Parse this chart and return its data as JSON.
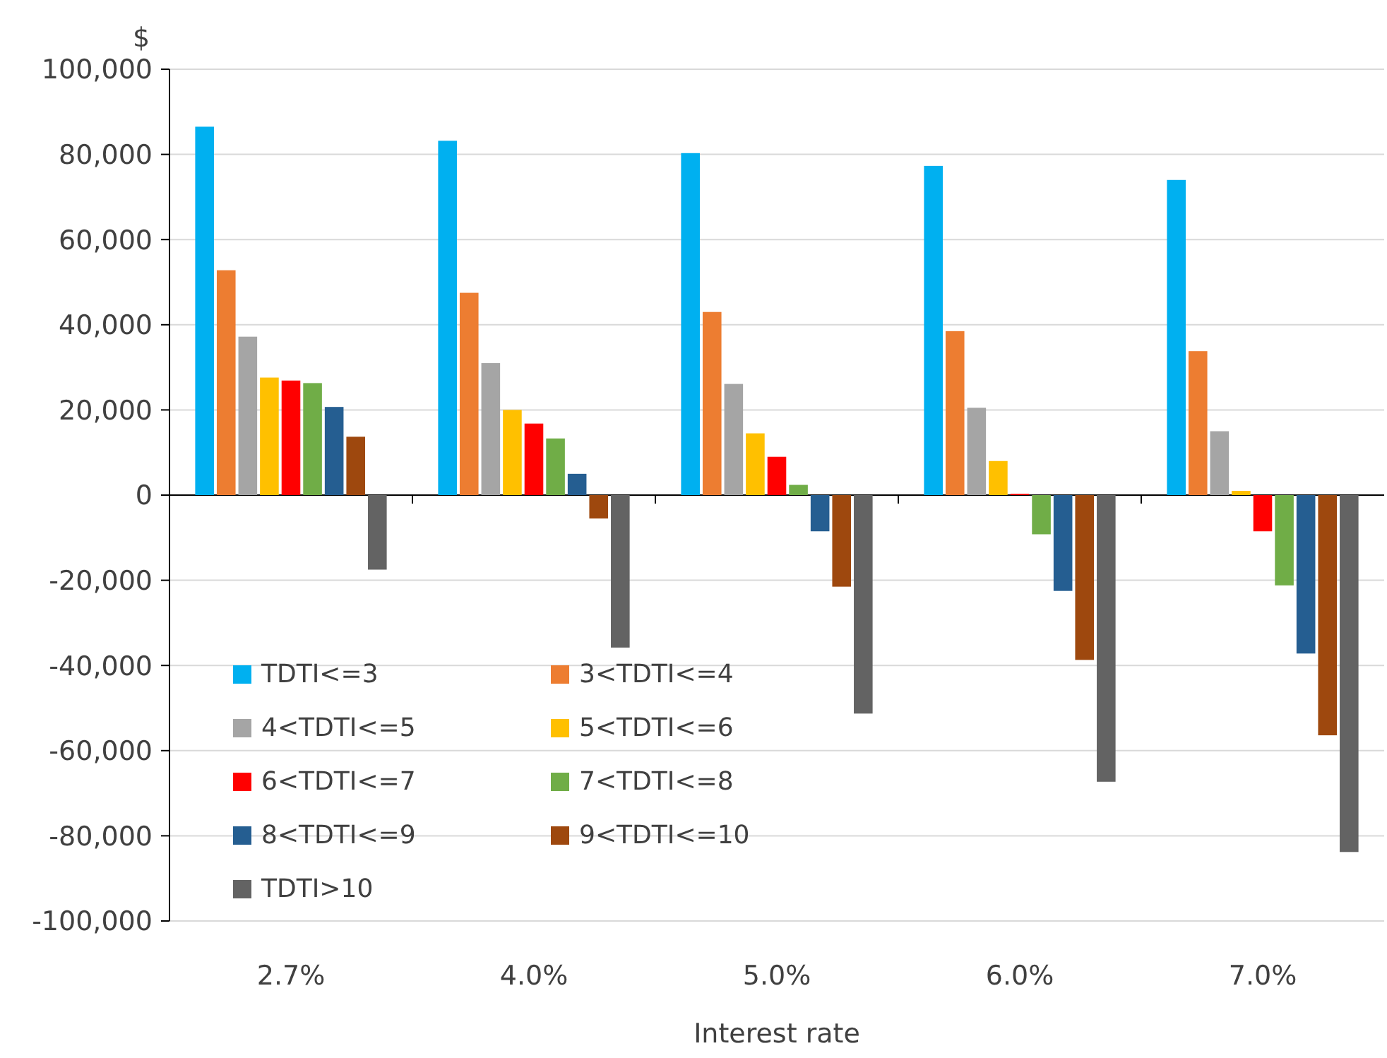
{
  "chart_data": {
    "type": "bar",
    "ylabel": "$",
    "xlabel": "Interest rate",
    "categories": [
      "2.7%",
      "4.0%",
      "5.0%",
      "6.0%",
      "7.0%"
    ],
    "series": [
      {
        "name": "TDTI<=3",
        "color": "#00b0f0",
        "values": [
          86500,
          83200,
          80300,
          77300,
          74000
        ]
      },
      {
        "name": "3<TDTI<=4",
        "color": "#ed7d31",
        "values": [
          52800,
          47500,
          43000,
          38500,
          33800
        ]
      },
      {
        "name": "4<TDTI<=5",
        "color": "#a5a5a5",
        "values": [
          37200,
          31000,
          26100,
          20500,
          15000
        ]
      },
      {
        "name": "5<TDTI<=6",
        "color": "#ffc000",
        "values": [
          27600,
          20000,
          14500,
          8000,
          1000
        ]
      },
      {
        "name": "6<TDTI<=7",
        "color": "#ff0000",
        "values": [
          26900,
          16800,
          9000,
          300,
          -8500
        ]
      },
      {
        "name": "7<TDTI<=8",
        "color": "#70ad47",
        "values": [
          26300,
          13300,
          2400,
          -9200,
          -21200
        ]
      },
      {
        "name": "8<TDTI<=9",
        "color": "#255e91",
        "values": [
          20700,
          5000,
          -8500,
          -22500,
          -37200
        ]
      },
      {
        "name": "9<TDTI<=10",
        "color": "#9e480e",
        "values": [
          13700,
          -5500,
          -21500,
          -38700,
          -56400
        ]
      },
      {
        "name": "TDTI>10",
        "color": "#636363",
        "values": [
          -17500,
          -35800,
          -51300,
          -67300,
          -83800
        ]
      }
    ],
    "ylim": [
      -100000,
      100000
    ],
    "yticks": [
      {
        "value": -100000,
        "label": "-100,000"
      },
      {
        "value": -80000,
        "label": "-80,000"
      },
      {
        "value": -60000,
        "label": "-60,000"
      },
      {
        "value": -40000,
        "label": "-40,000"
      },
      {
        "value": -20000,
        "label": "-20,000"
      },
      {
        "value": 0,
        "label": "0"
      },
      {
        "value": 20000,
        "label": "20,000"
      },
      {
        "value": 40000,
        "label": "40,000"
      },
      {
        "value": 60000,
        "label": "60,000"
      },
      {
        "value": 80000,
        "label": "80,000"
      },
      {
        "value": 100000,
        "label": "100,000"
      }
    ],
    "grid": "y",
    "legend": "bottom left"
  }
}
